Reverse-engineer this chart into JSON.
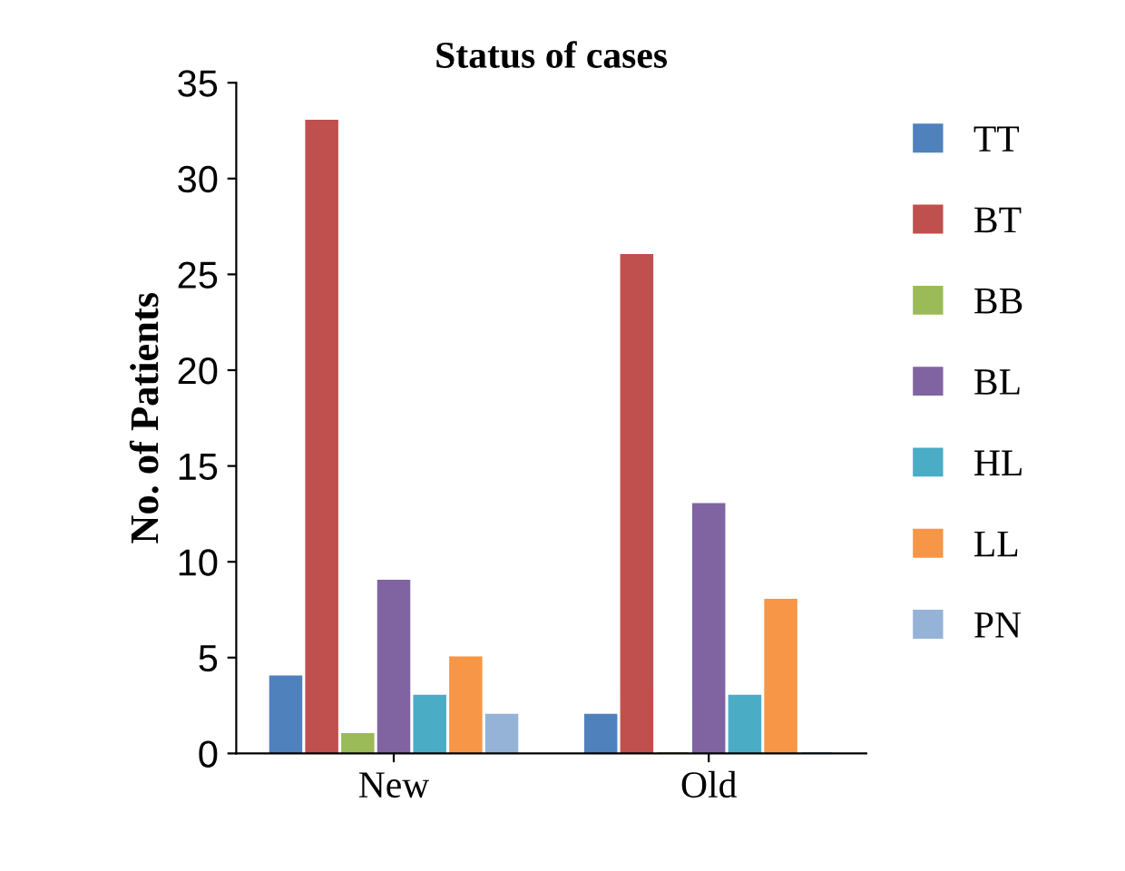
{
  "chart_data": {
    "type": "bar",
    "title": "Status of cases",
    "ylabel": "No. of Patients",
    "categories": [
      "New",
      "Old"
    ],
    "series": [
      {
        "name": "TT",
        "color": "#4f81bd",
        "values": [
          4,
          2
        ]
      },
      {
        "name": "BT",
        "color": "#c0504d",
        "values": [
          33,
          26
        ]
      },
      {
        "name": "BB",
        "color": "#9bbb59",
        "values": [
          1,
          0
        ]
      },
      {
        "name": "BL",
        "color": "#8064a2",
        "values": [
          9,
          13
        ]
      },
      {
        "name": "HL",
        "color": "#4bacc6",
        "values": [
          3,
          3
        ]
      },
      {
        "name": "LL",
        "color": "#f79646",
        "values": [
          5,
          8
        ]
      },
      {
        "name": "PN",
        "color": "#95b3d7",
        "values": [
          2,
          0
        ]
      }
    ],
    "ylim": [
      0,
      35
    ],
    "yticks": [
      0,
      5,
      10,
      15,
      20,
      25,
      30,
      35
    ],
    "grid": false,
    "legend": "right"
  }
}
